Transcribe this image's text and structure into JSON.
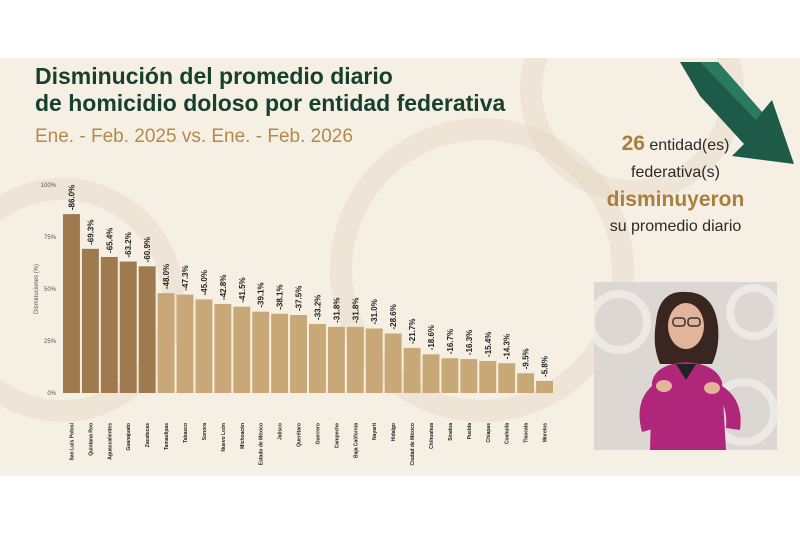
{
  "slide": {
    "title_line1": "Disminución del promedio diario",
    "title_line2": "de homicidio doloso por entidad federativa",
    "subtitle": "Ene. - Feb. 2025 vs. Ene. - Feb. 2026",
    "summary": {
      "count": "26",
      "line1_rest": " entidad(es)",
      "line2": "federativa(s)",
      "highlight": "disminuyeron",
      "line4": "su promedio diario"
    }
  },
  "colors": {
    "bar_dark": "#9e7a4e",
    "bar_light": "#c9a878",
    "title": "#17402f",
    "accent": "#a97f3f",
    "arrow": "#1d5a48"
  },
  "chart_data": {
    "type": "bar",
    "title": "",
    "xlabel": "",
    "ylabel": "Disminuciones (%)",
    "ylim": [
      0,
      100
    ],
    "yticks": [
      0,
      25,
      50,
      75,
      100
    ],
    "ytick_labels": [
      "0%",
      "25%",
      "50%",
      "75%",
      "100%"
    ],
    "grid": false,
    "categories": [
      "San Luis Potosí",
      "Quintana Roo",
      "Aguascalientes",
      "Guanajuato",
      "Zacatecas",
      "Tamaulipas",
      "Tabasco",
      "Sonora",
      "Nuevo León",
      "Michoacán",
      "Estado de México",
      "Jalisco",
      "Querétaro",
      "Guerrero",
      "Campeche",
      "Baja California",
      "Nayarit",
      "Hidalgo",
      "Ciudad de México",
      "Chihuahua",
      "Sinaloa",
      "Puebla",
      "Chiapas",
      "Coahuila",
      "Tlaxcala",
      "Morelos"
    ],
    "values": [
      86.0,
      69.3,
      65.4,
      63.2,
      60.9,
      48.0,
      47.3,
      45.0,
      42.8,
      41.5,
      39.1,
      38.1,
      37.5,
      33.2,
      31.8,
      31.8,
      31.0,
      28.6,
      21.7,
      18.6,
      16.7,
      16.3,
      15.4,
      14.3,
      9.5,
      5.8
    ],
    "value_labels": [
      "-86.0%",
      "-69.3%",
      "-65.4%",
      "-63.2%",
      "-60.9%",
      "-48.0%",
      "-47.3%",
      "-45.0%",
      "-42.8%",
      "-41.5%",
      "-39.1%",
      "-38.1%",
      "-37.5%",
      "-33.2%",
      "-31.8%",
      "-31.8%",
      "-31.0%",
      "-28.6%",
      "-21.7%",
      "-18.6%",
      "-16.7%",
      "-16.3%",
      "-15.4%",
      "-14.3%",
      "-9.5%",
      "-5.8%"
    ],
    "highlight_count": 5
  }
}
